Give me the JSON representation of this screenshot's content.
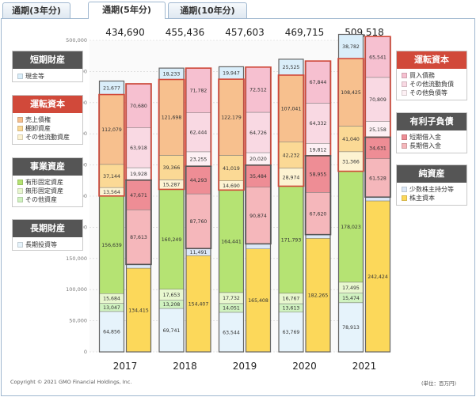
{
  "tabs": [
    {
      "label": "通期(3年分)",
      "active": false
    },
    {
      "label": "通期(5年分)",
      "active": true
    },
    {
      "label": "通期(10年分)",
      "active": false
    }
  ],
  "legend_left": [
    {
      "title": "短期財産",
      "head_color": "#555555",
      "items": [
        {
          "label": "現金等",
          "color": "#daeefa"
        }
      ]
    },
    {
      "title": "運転資本",
      "head_color": "#d1493a",
      "items": [
        {
          "label": "売上債権",
          "color": "#f7c08e"
        },
        {
          "label": "棚卸資産",
          "color": "#fbd995"
        },
        {
          "label": "その他流動資産",
          "color": "#fdf3d2"
        }
      ]
    },
    {
      "title": "事業資産",
      "head_color": "#555555",
      "items": [
        {
          "label": "有形固定資産",
          "color": "#b5e373"
        },
        {
          "label": "無形固定資産",
          "color": "#e8f7cf"
        },
        {
          "label": "その他資産",
          "color": "#d0f2c0"
        }
      ]
    },
    {
      "title": "長期財産",
      "head_color": "#555555",
      "items": [
        {
          "label": "長期投資等",
          "color": "#e6f3fb"
        }
      ]
    }
  ],
  "legend_right": [
    {
      "title": "運転資本",
      "head_color": "#d1493a",
      "items": [
        {
          "label": "買入債務",
          "color": "#f6c0d0"
        },
        {
          "label": "その他流動負債",
          "color": "#f9d9e3"
        },
        {
          "label": "その他負債等",
          "color": "#fdf0f4"
        }
      ]
    },
    {
      "title": "有利子負債",
      "head_color": "#555555",
      "items": [
        {
          "label": "短期借入金",
          "color": "#ee8d95"
        },
        {
          "label": "長期借入金",
          "color": "#f5b7bb"
        }
      ]
    },
    {
      "title": "純資産",
      "head_color": "#555555",
      "items": [
        {
          "label": "少数株主持分等",
          "color": "#dce8f7"
        },
        {
          "label": "株主資本",
          "color": "#fcd85a"
        }
      ]
    }
  ],
  "footer": {
    "copyright": "Copyright © 2021 GMO Financial Holdings, Inc.",
    "unit": "(単位：百万円)"
  },
  "chart_data": {
    "type": "bar",
    "subtype": "stacked-balance-sheet",
    "categories": [
      "2017",
      "2018",
      "2019",
      "2020",
      "2021"
    ],
    "totals": [
      434690,
      455436,
      457603,
      469715,
      509518
    ],
    "ylim": [
      0,
      500000
    ],
    "yticks": [
      0,
      50000,
      100000,
      150000,
      200000,
      250000,
      300000,
      350000,
      400000,
      450000,
      500000
    ],
    "grid": true,
    "assets": [
      {
        "year": "2017",
        "segments": [
          {
            "name": "長期投資等",
            "value": 64856,
            "color": "#e6f3fb",
            "label": "64,856"
          },
          {
            "name": "その他資産",
            "value": 13047,
            "color": "#d0f2c0",
            "label": "13,047"
          },
          {
            "name": "無形固定資産",
            "value": 15684,
            "color": "#e8f7cf",
            "label": "15,684"
          },
          {
            "name": "有形固定資産",
            "value": 156639,
            "color": "#b5e373",
            "label": "156,639"
          },
          {
            "name": "その他流動資産",
            "value": 13564,
            "color": "#fdf3d2",
            "label": "13,564"
          },
          {
            "name": "棚卸資産",
            "value": 37144,
            "color": "#fbd995",
            "label": "37,144"
          },
          {
            "name": "売上債権",
            "value": 112079,
            "color": "#f7c08e",
            "label": "112,079"
          },
          {
            "name": "現金等",
            "value": 21677,
            "color": "#daeefa",
            "label": "21,677"
          }
        ]
      },
      {
        "year": "2018",
        "segments": [
          {
            "name": "長期投資等",
            "value": 69741,
            "color": "#e6f3fb",
            "label": "69,741"
          },
          {
            "name": "その他資産",
            "value": 13208,
            "color": "#d0f2c0",
            "label": "13,208"
          },
          {
            "name": "無形固定資産",
            "value": 17653,
            "color": "#e8f7cf",
            "label": "17,653"
          },
          {
            "name": "有形固定資産",
            "value": 160249,
            "color": "#b5e373",
            "label": "160,249"
          },
          {
            "name": "その他流動資産",
            "value": 15287,
            "color": "#fdf3d2",
            "label": "15,287"
          },
          {
            "name": "棚卸資産",
            "value": 39366,
            "color": "#fbd995",
            "label": "39,366"
          },
          {
            "name": "売上債権",
            "value": 121698,
            "color": "#f7c08e",
            "label": "121,698"
          },
          {
            "name": "現金等",
            "value": 18233,
            "color": "#daeefa",
            "label": "18,233"
          }
        ]
      },
      {
        "year": "2019",
        "segments": [
          {
            "name": "長期投資等",
            "value": 63544,
            "color": "#e6f3fb",
            "label": "63,544"
          },
          {
            "name": "その他資産",
            "value": 14051,
            "color": "#d0f2c0",
            "label": "14,051"
          },
          {
            "name": "無形固定資産",
            "value": 17732,
            "color": "#e8f7cf",
            "label": "17,732"
          },
          {
            "name": "有形固定資産",
            "value": 164441,
            "color": "#b5e373",
            "label": "164,441"
          },
          {
            "name": "その他流動資産",
            "value": 14690,
            "color": "#fdf3d2",
            "label": "14,690"
          },
          {
            "name": "棚卸資産",
            "value": 41019,
            "color": "#fbd995",
            "label": "41,019"
          },
          {
            "name": "売上債権",
            "value": 122179,
            "color": "#f7c08e",
            "label": "122,179"
          },
          {
            "name": "現金等",
            "value": 19947,
            "color": "#daeefa",
            "label": "19,947"
          }
        ]
      },
      {
        "year": "2020",
        "segments": [
          {
            "name": "長期投資等",
            "value": 63769,
            "color": "#e6f3fb",
            "label": "63,769"
          },
          {
            "name": "その他資産",
            "value": 13613,
            "color": "#d0f2c0",
            "label": "13,613"
          },
          {
            "name": "無形固定資産",
            "value": 16767,
            "color": "#e8f7cf",
            "label": "16,767"
          },
          {
            "name": "有形固定資産",
            "value": 171793,
            "color": "#b5e373",
            "label": "171,793"
          },
          {
            "name": "その他流動資産",
            "value": 28974,
            "color": "#fdf3d2",
            "label": "28,974"
          },
          {
            "name": "棚卸資産",
            "value": 42232,
            "color": "#fbd995",
            "label": "42,232"
          },
          {
            "name": "売上債権",
            "value": 107041,
            "color": "#f7c08e",
            "label": "107,041"
          },
          {
            "name": "現金等",
            "value": 25525,
            "color": "#daeefa",
            "label": "25,525"
          }
        ]
      },
      {
        "year": "2021",
        "segments": [
          {
            "name": "長期投資等",
            "value": 78913,
            "color": "#e6f3fb",
            "label": "78,913"
          },
          {
            "name": "その他資産",
            "value": 15474,
            "color": "#d0f2c0",
            "label": "15,474"
          },
          {
            "name": "無形固定資産",
            "value": 17495,
            "color": "#e8f7cf",
            "label": "17,495"
          },
          {
            "name": "有形固定資産",
            "value": 178023,
            "color": "#b5e373",
            "label": "178,023"
          },
          {
            "name": "その他流動資産",
            "value": 31366,
            "color": "#fdf3d2",
            "label": "31,366"
          },
          {
            "name": "棚卸資産",
            "value": 41040,
            "color": "#fbd995",
            "label": "41,040"
          },
          {
            "name": "売上債権",
            "value": 108425,
            "color": "#f7c08e",
            "label": "108,425"
          },
          {
            "name": "現金等",
            "value": 38782,
            "color": "#daeefa",
            "label": "38,782"
          }
        ]
      }
    ],
    "liabilities": [
      {
        "year": "2017",
        "segments": [
          {
            "name": "株主資本",
            "value": 134415,
            "color": "#fcd85a",
            "label": "134,415"
          },
          {
            "name": "少数株主持分等",
            "value": 6000,
            "color": "#dce8f7",
            "label": ""
          },
          {
            "name": "長期借入金",
            "value": 87613,
            "color": "#f5b7bb",
            "label": "87,613"
          },
          {
            "name": "短期借入金",
            "value": 47671,
            "color": "#ee8d95",
            "label": "47,671"
          },
          {
            "name": "その他負債等",
            "value": 19928,
            "color": "#fdf0f4",
            "label": "19,928"
          },
          {
            "name": "その他流動負債",
            "value": 63918,
            "color": "#f9d9e3",
            "label": "63,918"
          },
          {
            "name": "買入債務",
            "value": 70680,
            "color": "#f6c0d0",
            "label": "70,680"
          }
        ]
      },
      {
        "year": "2018",
        "segments": [
          {
            "name": "株主資本",
            "value": 154407,
            "color": "#fcd85a",
            "label": "154,407"
          },
          {
            "name": "少数株主持分等",
            "value": 11491,
            "color": "#dce8f7",
            "label": "11,491"
          },
          {
            "name": "長期借入金",
            "value": 87760,
            "color": "#f5b7bb",
            "label": "87,760"
          },
          {
            "name": "短期借入金",
            "value": 44293,
            "color": "#ee8d95",
            "label": "44,293"
          },
          {
            "name": "その他負債等",
            "value": 23255,
            "color": "#fdf0f4",
            "label": "23,255"
          },
          {
            "name": "その他流動負債",
            "value": 62444,
            "color": "#f9d9e3",
            "label": "62,444"
          },
          {
            "name": "買入債務",
            "value": 71782,
            "color": "#f6c0d0",
            "label": "71,782"
          }
        ]
      },
      {
        "year": "2019",
        "segments": [
          {
            "name": "株主資本",
            "value": 165408,
            "color": "#fcd85a",
            "label": "165,408"
          },
          {
            "name": "少数株主持分等",
            "value": 8000,
            "color": "#dce8f7",
            "label": ""
          },
          {
            "name": "長期借入金",
            "value": 90874,
            "color": "#f5b7bb",
            "label": "90,874"
          },
          {
            "name": "短期借入金",
            "value": 35484,
            "color": "#ee8d95",
            "label": "35,484"
          },
          {
            "name": "その他負債等",
            "value": 20020,
            "color": "#fdf0f4",
            "label": "20,020"
          },
          {
            "name": "その他流動負債",
            "value": 64726,
            "color": "#f9d9e3",
            "label": "64,726"
          },
          {
            "name": "買入債務",
            "value": 72512,
            "color": "#f6c0d0",
            "label": "72,512"
          }
        ]
      },
      {
        "year": "2020",
        "segments": [
          {
            "name": "株主資本",
            "value": 182265,
            "color": "#fcd85a",
            "label": "182,265"
          },
          {
            "name": "少数株主持分等",
            "value": 6000,
            "color": "#dce8f7",
            "label": ""
          },
          {
            "name": "長期借入金",
            "value": 67620,
            "color": "#f5b7bb",
            "label": "67,620"
          },
          {
            "name": "短期借入金",
            "value": 58955,
            "color": "#ee8d95",
            "label": "58,955"
          },
          {
            "name": "その他負債等",
            "value": 19812,
            "color": "#fdf0f4",
            "label": "19,812"
          },
          {
            "name": "その他流動負債",
            "value": 64332,
            "color": "#f9d9e3",
            "label": "64,332"
          },
          {
            "name": "買入債務",
            "value": 67844,
            "color": "#f6c0d0",
            "label": "67,844"
          }
        ]
      },
      {
        "year": "2021",
        "segments": [
          {
            "name": "株主資本",
            "value": 242424,
            "color": "#fcd85a",
            "label": "242,424"
          },
          {
            "name": "少数株主持分等",
            "value": 6000,
            "color": "#dce8f7",
            "label": ""
          },
          {
            "name": "長期借入金",
            "value": 61528,
            "color": "#f5b7bb",
            "label": "61,528"
          },
          {
            "name": "短期借入金",
            "value": 34631,
            "color": "#ee8d95",
            "label": "34,631"
          },
          {
            "name": "その他負債等",
            "value": 25158,
            "color": "#fdf0f4",
            "label": "25,158"
          },
          {
            "name": "その他流動負債",
            "value": 70809,
            "color": "#f9d9e3",
            "label": "70,809"
          },
          {
            "name": "買入債務",
            "value": 65541,
            "color": "#f6c0d0",
            "label": "65,541"
          }
        ]
      }
    ],
    "group_borders": {
      "asset_working_capital": [
        "その他流動資産",
        "棚卸資産",
        "売上債権"
      ],
      "liability_working_capital": [
        "その他負債等",
        "その他流動負債",
        "買入債務"
      ],
      "liability_interest_bearing": [
        "長期借入金",
        "短期借入金"
      ]
    }
  }
}
